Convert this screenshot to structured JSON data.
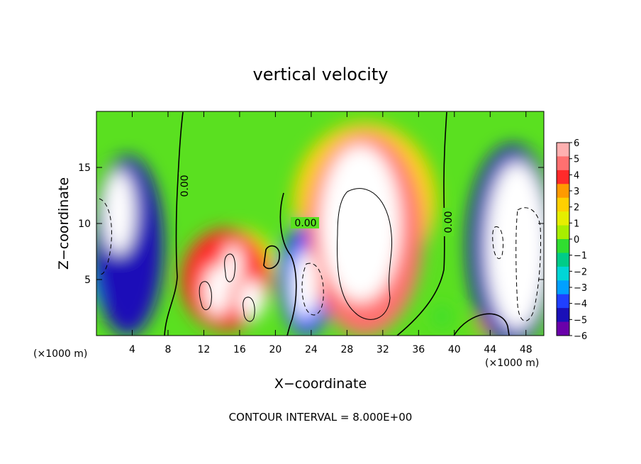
{
  "chart_data": {
    "type": "heatmap",
    "title": "vertical velocity",
    "xlabel": "X−coordinate",
    "ylabel": "Z−coordinate",
    "x_unit_left": "(×1000 m)",
    "x_unit_right": "(×1000 m)",
    "xlim": [
      0,
      50
    ],
    "ylim": [
      0,
      20
    ],
    "x_ticks": [
      4,
      8,
      12,
      16,
      20,
      24,
      28,
      32,
      36,
      40,
      44,
      48
    ],
    "y_ticks": [
      5,
      10,
      15
    ],
    "colorbar": {
      "ticks": [
        6,
        5,
        4,
        3,
        2,
        1,
        0,
        "−1",
        "−2",
        "−3",
        "−4",
        "−5",
        "−6"
      ],
      "colors": [
        "#ffb0b0",
        "#ff7070",
        "#ff2a2a",
        "#ff9a00",
        "#ffd000",
        "#e6ee00",
        "#a8ee00",
        "#30dd30",
        "#00cc88",
        "#00d6d6",
        "#00a0ff",
        "#2040ff",
        "#1a10b8",
        "#6a00aa"
      ]
    },
    "contour_labels": [
      "0.00",
      "0.00",
      "0.00"
    ],
    "contour_interval_text": "CONTOUR INTERVAL = 8.000E+00",
    "cells": [
      {
        "x": 2.5,
        "z": 11,
        "w": 3.6,
        "h": 7.5,
        "v": -6.5
      },
      {
        "x": 3.5,
        "z": 8,
        "w": 8,
        "h": 16,
        "v": -4.5
      },
      {
        "x": 2.2,
        "z": 5,
        "w": 6,
        "h": 6,
        "v": -3
      },
      {
        "x": 29.5,
        "z": 10,
        "w": 9,
        "h": 14,
        "v": 6.5
      },
      {
        "x": 30,
        "z": 9,
        "w": 13,
        "h": 18,
        "v": 4.5
      },
      {
        "x": 30,
        "z": 12,
        "w": 16,
        "h": 14,
        "v": 2.5
      },
      {
        "x": 14.5,
        "z": 5,
        "w": 10,
        "h": 9,
        "v": 3.5
      },
      {
        "x": 13.5,
        "z": 4,
        "w": 3,
        "h": 4.5,
        "v": 6.5
      },
      {
        "x": 15.3,
        "z": 6.4,
        "w": 2,
        "h": 3.5,
        "v": 6.5
      },
      {
        "x": 17.3,
        "z": 3.2,
        "w": 3,
        "h": 3.5,
        "v": 6.5
      },
      {
        "x": 16,
        "z": 6.5,
        "w": 8,
        "h": 6,
        "v": 1.5
      },
      {
        "x": 23.3,
        "z": 4.5,
        "w": 3,
        "h": 6,
        "v": -6.5
      },
      {
        "x": 23.5,
        "z": 5,
        "w": 6,
        "h": 10,
        "v": -4
      },
      {
        "x": 19.5,
        "z": 6.5,
        "w": 2,
        "h": 2,
        "v": -0.5
      },
      {
        "x": 47,
        "z": 8,
        "w": 7,
        "h": 15,
        "v": -6.5
      },
      {
        "x": 46.5,
        "z": 8,
        "w": 10,
        "h": 18,
        "v": -4.5
      },
      {
        "x": 43.8,
        "z": 1.2,
        "w": 3,
        "h": 2.4,
        "v": 3
      },
      {
        "x": 38.6,
        "z": 1.7,
        "w": 1.5,
        "h": 2,
        "v": -0.5
      }
    ]
  }
}
